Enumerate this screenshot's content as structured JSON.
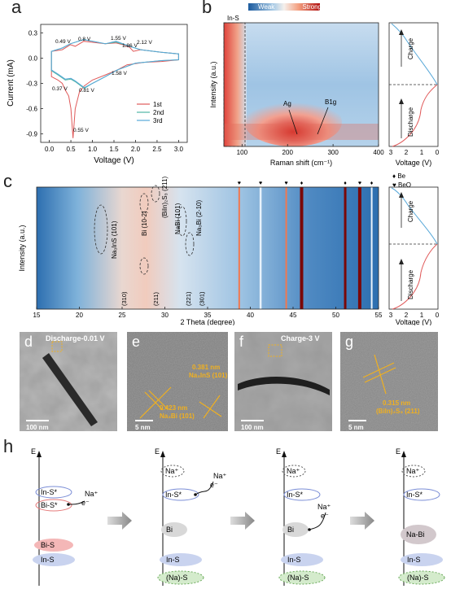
{
  "panels": {
    "a": {
      "letter": "a",
      "xlabel": "Voltage (V)",
      "ylabel": "Current (mA)",
      "xticks": [
        "0.0",
        "0.5",
        "1.0",
        "1.5",
        "2.0",
        "2.5",
        "3.0"
      ],
      "yticks": [
        "0.3",
        "0.0",
        "-0.3",
        "-0.6",
        "-0.9"
      ],
      "legend": [
        "1st",
        "2nd",
        "3rd"
      ],
      "annotations": [
        "0.49 V",
        "0.8 V",
        "1.55 V",
        "1.86 V",
        "2.12 V",
        "1.58 V",
        "0.37 V",
        "0.81 V",
        "0.55 V"
      ]
    },
    "b": {
      "letter": "b",
      "colorbar_weak": "Weak",
      "colorbar_strong": "Strong",
      "ylabel": "Intensity (a.u.)",
      "xlabel": "Raman shift (cm⁻¹)",
      "xticks": [
        "100",
        "200",
        "300",
        "400"
      ],
      "box_label": "In-S",
      "peak_a": "Ag",
      "peak_b": "B1g",
      "side_ylabel": "Voltage (V)",
      "side_xticks": [
        "3",
        "2",
        "1",
        "0"
      ],
      "charge": "Charge",
      "discharge": "Discharge"
    },
    "c": {
      "letter": "c",
      "ylabel": "Intensity (a.u.)",
      "xlabel": "2 Theta (degree)",
      "xticks": [
        "15",
        "20",
        "25",
        "30",
        "35",
        "40",
        "45",
        "50",
        "55"
      ],
      "legend_be": "Be",
      "legend_beo": "BeO",
      "labels": [
        "Na₃InS (101)",
        "Bi (10-2)",
        "(BiIn)₂S₃ (211)",
        "NaBi (101)",
        "Na₃Bi (2-10)"
      ],
      "hkl": [
        "(310)",
        "(211)",
        "(221)",
        "(301)"
      ],
      "side_xticks": [
        "3",
        "2",
        "1",
        "0"
      ],
      "side_xlabel": "Voltage (V)",
      "charge": "Charge",
      "discharge": "Discharge"
    },
    "d": {
      "letter": "d",
      "title": "Discharge-0.01 V",
      "scale": "100 nm"
    },
    "e": {
      "letter": "e",
      "text1": "0.381 nm",
      "text2": "Na₃InS (101)",
      "text3": "0.423 nm",
      "text4": "Na₃Bi (101)",
      "scale": "5 nm"
    },
    "f": {
      "letter": "f",
      "title": "Charge-3 V",
      "scale": "100 nm"
    },
    "g": {
      "letter": "g",
      "text1": "0.315 nm",
      "text2": "(BiIn)₂S₃ (211)",
      "scale": "5 nm"
    },
    "h": {
      "letter": "h",
      "axis": "E",
      "s1": [
        "In-S*",
        "Bi-S*",
        "Bi-S",
        "In-S",
        "Na⁺",
        "e⁻"
      ],
      "s2": [
        "Na⁺",
        "In-S*",
        "Bi",
        "In-S",
        "(Na)-S",
        "Na⁺",
        "e⁻"
      ],
      "s3": [
        "Na⁺",
        "In-S*",
        "Bi",
        "In-S",
        "(Na)-S",
        "Na⁺",
        "e⁻"
      ],
      "s4": [
        "Na⁺",
        "In-S*",
        "Na-Bi",
        "In-S",
        "(Na)-S"
      ]
    }
  },
  "chart_data": [
    {
      "type": "line",
      "title": "",
      "xlabel": "Voltage (V)",
      "ylabel": "Current (mA)",
      "xlim": [
        -0.2,
        3.2
      ],
      "ylim": [
        -1.0,
        0.4
      ],
      "series": [
        {
          "name": "1st",
          "color": "#e05a5a",
          "x": [
            0.05,
            0.2,
            0.3,
            0.37,
            0.45,
            0.5,
            0.55,
            0.6,
            0.7,
            0.81,
            1.0,
            1.3,
            1.58,
            1.8,
            2.2,
            2.6,
            3.0,
            3.0,
            2.6,
            2.12,
            1.95,
            1.86,
            1.7,
            1.55,
            1.3,
            0.8,
            0.6,
            0.49,
            0.3,
            0.05
          ],
          "y": [
            -0.22,
            -0.26,
            -0.3,
            -0.38,
            -0.45,
            -0.6,
            -0.95,
            -0.6,
            -0.4,
            -0.33,
            -0.26,
            -0.2,
            -0.14,
            -0.08,
            -0.05,
            -0.04,
            -0.02,
            0.05,
            0.07,
            0.1,
            0.08,
            0.13,
            0.16,
            0.18,
            0.17,
            0.2,
            0.14,
            0.16,
            0.1,
            0.08
          ]
        },
        {
          "name": "2nd",
          "color": "#4fb6a5",
          "x": [
            0.05,
            0.2,
            0.37,
            0.5,
            0.6,
            0.81,
            1.0,
            1.3,
            1.58,
            2.0,
            2.6,
            3.0,
            3.0,
            2.6,
            2.12,
            1.86,
            1.55,
            1.3,
            0.8,
            0.49,
            0.3,
            0.05
          ],
          "y": [
            -0.15,
            -0.2,
            -0.26,
            -0.25,
            -0.28,
            -0.36,
            -0.3,
            -0.22,
            -0.14,
            -0.06,
            -0.03,
            -0.02,
            0.05,
            0.07,
            0.1,
            0.14,
            0.19,
            0.17,
            0.22,
            0.17,
            0.12,
            0.08
          ]
        },
        {
          "name": "3rd",
          "color": "#58a8d8",
          "x": [
            0.05,
            0.2,
            0.37,
            0.5,
            0.6,
            0.81,
            1.0,
            1.3,
            1.58,
            2.0,
            2.6,
            3.0,
            3.0,
            2.6,
            2.12,
            1.86,
            1.55,
            1.3,
            0.8,
            0.49,
            0.3,
            0.05
          ],
          "y": [
            -0.14,
            -0.19,
            -0.25,
            -0.24,
            -0.27,
            -0.35,
            -0.3,
            -0.22,
            -0.14,
            -0.06,
            -0.03,
            -0.02,
            0.05,
            0.07,
            0.1,
            0.14,
            0.2,
            0.17,
            0.22,
            0.17,
            0.12,
            0.08
          ]
        }
      ]
    }
  ]
}
